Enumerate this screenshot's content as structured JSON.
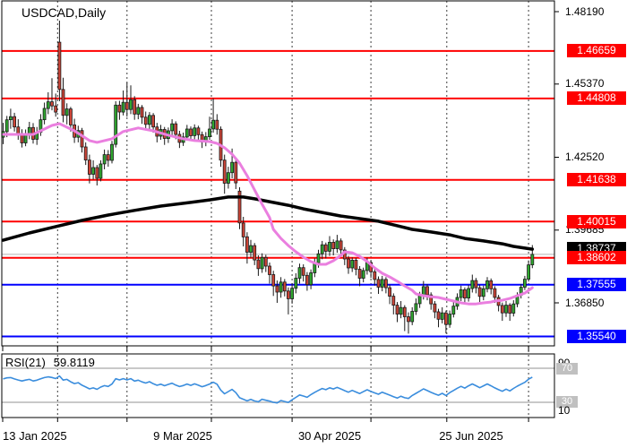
{
  "title": "USDCAD,Daily",
  "rsi_panel": {
    "label": "RSI(21)",
    "value": "59.8119",
    "upper_scale": "90",
    "upper_level": "70",
    "lower_level": "30",
    "lower_scale": "10"
  },
  "colors": {
    "bull_body": "#2fa72f",
    "bear_body": "#cc4437",
    "candle_outline": "#1a1a1a",
    "ma_fast": "#ea7fdf",
    "ma_slow": "#000000",
    "resistance": "#ff0000",
    "support": "#0000ff",
    "current_price_line": "#b4b4b4",
    "current_price_badge": "#000000",
    "rsi_line": "#3a8ddd",
    "rsi_level_line": "#c8c8c8",
    "separator": "#3c3c3c"
  },
  "chart_data": {
    "type": "candlestick",
    "symbol": "USDCAD",
    "timeframe": "Daily",
    "date_labels": [
      "13 Jan 2025",
      "9 Mar 2025",
      "30 Apr 2025",
      "25 Jun 2025"
    ],
    "y_ticks": [
      "1.48190",
      "1.45370",
      "1.42520",
      "1.39685",
      "1.36850"
    ],
    "horizontal_lines": [
      {
        "price": 1.46659,
        "label": "1.46659",
        "color": "#ff0000",
        "role": "resistance"
      },
      {
        "price": 1.44808,
        "label": "1.44808",
        "color": "#ff0000",
        "role": "resistance"
      },
      {
        "price": 1.41638,
        "label": "1.41638",
        "color": "#ff0000",
        "role": "resistance"
      },
      {
        "price": 1.40015,
        "label": "1.40015",
        "color": "#ff0000",
        "role": "resistance"
      },
      {
        "price": 1.38602,
        "label": "1.38602",
        "color": "#ff0000",
        "role": "resistance"
      },
      {
        "price": 1.37555,
        "label": "1.37555",
        "color": "#0000ff",
        "role": "support"
      },
      {
        "price": 1.3554,
        "label": "1.35540",
        "color": "#0000ff",
        "role": "support"
      }
    ],
    "current_price": {
      "price": 1.38737,
      "label": "1.38737"
    },
    "separator_indices": [
      15,
      33.5,
      56,
      77.5,
      98.5,
      118.7,
      140.5
    ],
    "rsi": {
      "period": 21,
      "value": 59.8119,
      "levels": [
        70,
        30
      ],
      "scale_min": 10,
      "scale_max": 90
    },
    "ohlc_columns": [
      "open",
      "high",
      "low",
      "close"
    ],
    "candles": [
      [
        1.433,
        1.4386,
        1.4303,
        1.4352
      ],
      [
        1.4352,
        1.4413,
        1.433,
        1.4398
      ],
      [
        1.4398,
        1.4441,
        1.4363,
        1.441
      ],
      [
        1.441,
        1.4425,
        1.4352,
        1.437
      ],
      [
        1.437,
        1.44,
        1.432,
        1.4338
      ],
      [
        1.4338,
        1.4361,
        1.429,
        1.4308
      ],
      [
        1.4308,
        1.436,
        1.4295,
        1.434
      ],
      [
        1.434,
        1.439,
        1.4322,
        1.4368
      ],
      [
        1.4368,
        1.4385,
        1.4305,
        1.4322
      ],
      [
        1.4322,
        1.437,
        1.43,
        1.435
      ],
      [
        1.435,
        1.442,
        1.4335,
        1.4398
      ],
      [
        1.4398,
        1.4465,
        1.438,
        1.4442
      ],
      [
        1.4442,
        1.4505,
        1.442,
        1.4468
      ],
      [
        1.4468,
        1.456,
        1.4435,
        1.4452
      ],
      [
        1.4452,
        1.45,
        1.441,
        1.4428
      ],
      [
        1.47,
        1.4784,
        1.447,
        1.4516
      ],
      [
        1.4516,
        1.4562,
        1.4388,
        1.4415
      ],
      [
        1.4415,
        1.4462,
        1.438,
        1.444
      ],
      [
        1.444,
        1.4448,
        1.4352,
        1.4378
      ],
      [
        1.4378,
        1.4402,
        1.4308,
        1.433
      ],
      [
        1.433,
        1.4375,
        1.431,
        1.4356
      ],
      [
        1.4356,
        1.4366,
        1.427,
        1.4292
      ],
      [
        1.4292,
        1.431,
        1.4222,
        1.4241
      ],
      [
        1.4241,
        1.4262,
        1.415,
        1.4186
      ],
      [
        1.4186,
        1.424,
        1.4165,
        1.4212
      ],
      [
        1.4212,
        1.4222,
        1.4142,
        1.417
      ],
      [
        1.417,
        1.424,
        1.4158,
        1.4226
      ],
      [
        1.4226,
        1.4282,
        1.4205,
        1.4262
      ],
      [
        1.4262,
        1.428,
        1.4215,
        1.424
      ],
      [
        1.424,
        1.4316,
        1.4228,
        1.4302
      ],
      [
        1.4302,
        1.447,
        1.429,
        1.4455
      ],
      [
        1.4455,
        1.4472,
        1.4398,
        1.4428
      ],
      [
        1.4428,
        1.4512,
        1.4415,
        1.4466
      ],
      [
        1.4466,
        1.4543,
        1.441,
        1.4438
      ],
      [
        1.4438,
        1.4532,
        1.442,
        1.4476
      ],
      [
        1.4476,
        1.449,
        1.4398,
        1.442
      ],
      [
        1.442,
        1.446,
        1.44,
        1.4446
      ],
      [
        1.4446,
        1.4455,
        1.4382,
        1.4408
      ],
      [
        1.4408,
        1.443,
        1.4358,
        1.438
      ],
      [
        1.438,
        1.4428,
        1.4362,
        1.4415
      ],
      [
        1.4415,
        1.4424,
        1.4348,
        1.437
      ],
      [
        1.437,
        1.4386,
        1.431,
        1.4334
      ],
      [
        1.4334,
        1.4378,
        1.432,
        1.436
      ],
      [
        1.436,
        1.437,
        1.43,
        1.4325
      ],
      [
        1.4325,
        1.4368,
        1.4308,
        1.4355
      ],
      [
        1.4355,
        1.44,
        1.4336,
        1.4382
      ],
      [
        1.4382,
        1.4392,
        1.4322,
        1.4341
      ],
      [
        1.4341,
        1.4355,
        1.4288,
        1.431
      ],
      [
        1.431,
        1.4348,
        1.4296,
        1.4331
      ],
      [
        1.4331,
        1.4378,
        1.4318,
        1.4362
      ],
      [
        1.4362,
        1.4372,
        1.4318,
        1.4336
      ],
      [
        1.4336,
        1.438,
        1.4322,
        1.4366
      ],
      [
        1.4366,
        1.4375,
        1.432,
        1.434
      ],
      [
        1.434,
        1.4352,
        1.4288,
        1.4311
      ],
      [
        1.4311,
        1.435,
        1.4295,
        1.4332
      ],
      [
        1.4332,
        1.441,
        1.432,
        1.4362
      ],
      [
        1.4362,
        1.4481,
        1.4348,
        1.4396
      ],
      [
        1.4396,
        1.442,
        1.434,
        1.4361
      ],
      [
        1.4361,
        1.4372,
        1.4215,
        1.4241
      ],
      [
        1.4241,
        1.4262,
        1.411,
        1.4151
      ],
      [
        1.4151,
        1.4215,
        1.413,
        1.4192
      ],
      [
        1.4192,
        1.4286,
        1.417,
        1.4232
      ],
      [
        1.4232,
        1.4245,
        1.4128,
        1.4152
      ],
      [
        1.412,
        1.4135,
        1.3972,
        1.3996
      ],
      [
        1.3996,
        1.402,
        1.3905,
        1.3942
      ],
      [
        1.3942,
        1.396,
        1.3838,
        1.3882
      ],
      [
        1.3882,
        1.393,
        1.386,
        1.3908
      ],
      [
        1.3908,
        1.3918,
        1.3832,
        1.3852
      ],
      [
        1.3852,
        1.387,
        1.379,
        1.3818
      ],
      [
        1.3818,
        1.3878,
        1.3802,
        1.3862
      ],
      [
        1.3862,
        1.3872,
        1.3805,
        1.3828
      ],
      [
        1.3828,
        1.3842,
        1.376,
        1.3795
      ],
      [
        1.3795,
        1.381,
        1.3712,
        1.3751
      ],
      [
        1.3751,
        1.3772,
        1.3685,
        1.3727
      ],
      [
        1.3727,
        1.3785,
        1.3705,
        1.3766
      ],
      [
        1.3766,
        1.3778,
        1.371,
        1.3731
      ],
      [
        1.3731,
        1.3745,
        1.364,
        1.3701
      ],
      [
        1.3701,
        1.3762,
        1.3682,
        1.3742
      ],
      [
        1.3742,
        1.38,
        1.3722,
        1.3781
      ],
      [
        1.3781,
        1.3838,
        1.376,
        1.3822
      ],
      [
        1.3822,
        1.3835,
        1.3768,
        1.3792
      ],
      [
        1.3792,
        1.3805,
        1.3732,
        1.3756
      ],
      [
        1.3756,
        1.3815,
        1.3738,
        1.3802
      ],
      [
        1.3802,
        1.3858,
        1.3785,
        1.3841
      ],
      [
        1.3841,
        1.3892,
        1.3822,
        1.3876
      ],
      [
        1.3876,
        1.3926,
        1.3855,
        1.3911
      ],
      [
        1.3911,
        1.392,
        1.3858,
        1.3886
      ],
      [
        1.3886,
        1.3945,
        1.3868,
        1.3921
      ],
      [
        1.3921,
        1.3932,
        1.387,
        1.3896
      ],
      [
        1.3896,
        1.395,
        1.388,
        1.3926
      ],
      [
        1.3926,
        1.3936,
        1.3865,
        1.3891
      ],
      [
        1.3891,
        1.3902,
        1.3832,
        1.3856
      ],
      [
        1.3856,
        1.3868,
        1.3798,
        1.3821
      ],
      [
        1.3821,
        1.3862,
        1.3805,
        1.3851
      ],
      [
        1.3851,
        1.386,
        1.3792,
        1.3816
      ],
      [
        1.3816,
        1.3828,
        1.375,
        1.3781
      ],
      [
        1.3781,
        1.3822,
        1.3765,
        1.3811
      ],
      [
        1.3811,
        1.3861,
        1.3795,
        1.3842
      ],
      [
        1.3842,
        1.3852,
        1.3782,
        1.3806
      ],
      [
        1.3806,
        1.3818,
        1.3752,
        1.3776
      ],
      [
        1.3776,
        1.3788,
        1.372,
        1.3746
      ],
      [
        1.3746,
        1.379,
        1.373,
        1.3776
      ],
      [
        1.3776,
        1.3785,
        1.3722,
        1.3744
      ],
      [
        1.3744,
        1.3756,
        1.368,
        1.3711
      ],
      [
        1.3711,
        1.3722,
        1.364,
        1.3676
      ],
      [
        1.3676,
        1.3688,
        1.361,
        1.3641
      ],
      [
        1.3641,
        1.3692,
        1.3625,
        1.3667
      ],
      [
        1.3667,
        1.3676,
        1.3575,
        1.3631
      ],
      [
        1.3631,
        1.3648,
        1.3565,
        1.3612
      ],
      [
        1.3612,
        1.3668,
        1.3598,
        1.3652
      ],
      [
        1.3652,
        1.3702,
        1.3638,
        1.3682
      ],
      [
        1.3682,
        1.3728,
        1.3665,
        1.3712
      ],
      [
        1.3712,
        1.377,
        1.3698,
        1.3748
      ],
      [
        1.3748,
        1.3758,
        1.3695,
        1.3716
      ],
      [
        1.3716,
        1.3726,
        1.3658,
        1.3681
      ],
      [
        1.3681,
        1.3692,
        1.3625,
        1.365
      ],
      [
        1.365,
        1.3662,
        1.359,
        1.3621
      ],
      [
        1.3621,
        1.3668,
        1.3605,
        1.3646
      ],
      [
        1.3646,
        1.3655,
        1.3566,
        1.3601
      ],
      [
        1.3601,
        1.3655,
        1.3588,
        1.3641
      ],
      [
        1.3641,
        1.369,
        1.3628,
        1.3672
      ],
      [
        1.3672,
        1.3722,
        1.3658,
        1.3706
      ],
      [
        1.3706,
        1.3752,
        1.3692,
        1.3736
      ],
      [
        1.3736,
        1.3745,
        1.3682,
        1.3704
      ],
      [
        1.3704,
        1.3755,
        1.369,
        1.3741
      ],
      [
        1.3741,
        1.3795,
        1.3725,
        1.3772
      ],
      [
        1.3772,
        1.3782,
        1.3722,
        1.3744
      ],
      [
        1.3744,
        1.3756,
        1.3688,
        1.371
      ],
      [
        1.371,
        1.3752,
        1.3695,
        1.374
      ],
      [
        1.374,
        1.3785,
        1.3726,
        1.3771
      ],
      [
        1.3771,
        1.378,
        1.3718,
        1.374
      ],
      [
        1.374,
        1.375,
        1.3685,
        1.3706
      ],
      [
        1.3706,
        1.3716,
        1.3652,
        1.3675
      ],
      [
        1.3675,
        1.3686,
        1.3615,
        1.3646
      ],
      [
        1.3646,
        1.3692,
        1.363,
        1.3676
      ],
      [
        1.3676,
        1.3684,
        1.3615,
        1.3645
      ],
      [
        1.3645,
        1.3695,
        1.3632,
        1.3681
      ],
      [
        1.3681,
        1.3726,
        1.3668,
        1.3715
      ],
      [
        1.3715,
        1.3758,
        1.3702,
        1.3746
      ],
      [
        1.3746,
        1.379,
        1.3735,
        1.3777
      ],
      [
        1.3777,
        1.385,
        1.3768,
        1.3833
      ],
      [
        1.3833,
        1.391,
        1.382,
        1.38737
      ]
    ],
    "ma_fast": {
      "name": "fast moving average",
      "points": [
        [
          0,
          1.4341
        ],
        [
          8,
          1.4341
        ],
        [
          13,
          1.4376
        ],
        [
          15,
          1.4383
        ],
        [
          19,
          1.4355
        ],
        [
          23,
          1.4317
        ],
        [
          25,
          1.431
        ],
        [
          29,
          1.4324
        ],
        [
          32,
          1.4352
        ],
        [
          36,
          1.4366
        ],
        [
          40,
          1.4355
        ],
        [
          44,
          1.4338
        ],
        [
          48,
          1.4324
        ],
        [
          51,
          1.4317
        ],
        [
          55,
          1.4313
        ],
        [
          57,
          1.4306
        ],
        [
          59,
          1.4289
        ],
        [
          61,
          1.4264
        ],
        [
          63,
          1.4229
        ],
        [
          65,
          1.418
        ],
        [
          67,
          1.4125
        ],
        [
          69,
          1.4069
        ],
        [
          71,
          1.4017
        ],
        [
          72,
          1.3971
        ],
        [
          74,
          1.3936
        ],
        [
          76,
          1.3908
        ],
        [
          78,
          1.3884
        ],
        [
          80,
          1.3863
        ],
        [
          82,
          1.3846
        ],
        [
          84,
          1.3835
        ],
        [
          86,
          1.3835
        ],
        [
          88,
          1.3849
        ],
        [
          90,
          1.387
        ],
        [
          91,
          1.3884
        ],
        [
          93,
          1.388
        ],
        [
          95,
          1.3866
        ],
        [
          97,
          1.3846
        ],
        [
          99,
          1.3821
        ],
        [
          101,
          1.38
        ],
        [
          103,
          1.3786
        ],
        [
          105,
          1.3769
        ],
        [
          107,
          1.3751
        ],
        [
          109,
          1.3734
        ],
        [
          110,
          1.372
        ],
        [
          112,
          1.3713
        ],
        [
          114,
          1.3709
        ],
        [
          116,
          1.3706
        ],
        [
          118,
          1.3699
        ],
        [
          120,
          1.3692
        ],
        [
          122,
          1.3685
        ],
        [
          124,
          1.3681
        ],
        [
          126,
          1.3681
        ],
        [
          128,
          1.3685
        ],
        [
          130,
          1.3688
        ],
        [
          131,
          1.3692
        ],
        [
          133,
          1.3695
        ],
        [
          135,
          1.3702
        ],
        [
          137,
          1.3713
        ],
        [
          139,
          1.3723
        ],
        [
          141,
          1.3744
        ]
      ]
    },
    "ma_slow": {
      "name": "slow moving average",
      "points": [
        [
          0,
          1.3929
        ],
        [
          7,
          1.3957
        ],
        [
          14,
          1.3982
        ],
        [
          21,
          1.4006
        ],
        [
          28,
          1.4027
        ],
        [
          35,
          1.4045
        ],
        [
          42,
          1.4062
        ],
        [
          50,
          1.4076
        ],
        [
          55,
          1.4086
        ],
        [
          60,
          1.4097
        ],
        [
          64,
          1.4097
        ],
        [
          67,
          1.409
        ],
        [
          71,
          1.4079
        ],
        [
          76,
          1.4065
        ],
        [
          80,
          1.4051
        ],
        [
          85,
          1.4037
        ],
        [
          90,
          1.4023
        ],
        [
          95,
          1.4013
        ],
        [
          100,
          1.4003
        ],
        [
          104,
          1.3989
        ],
        [
          109,
          1.3971
        ],
        [
          114,
          1.3961
        ],
        [
          119,
          1.395
        ],
        [
          123,
          1.3936
        ],
        [
          128,
          1.3926
        ],
        [
          133,
          1.3915
        ],
        [
          136,
          1.3905
        ],
        [
          141,
          1.3894
        ]
      ]
    }
  }
}
